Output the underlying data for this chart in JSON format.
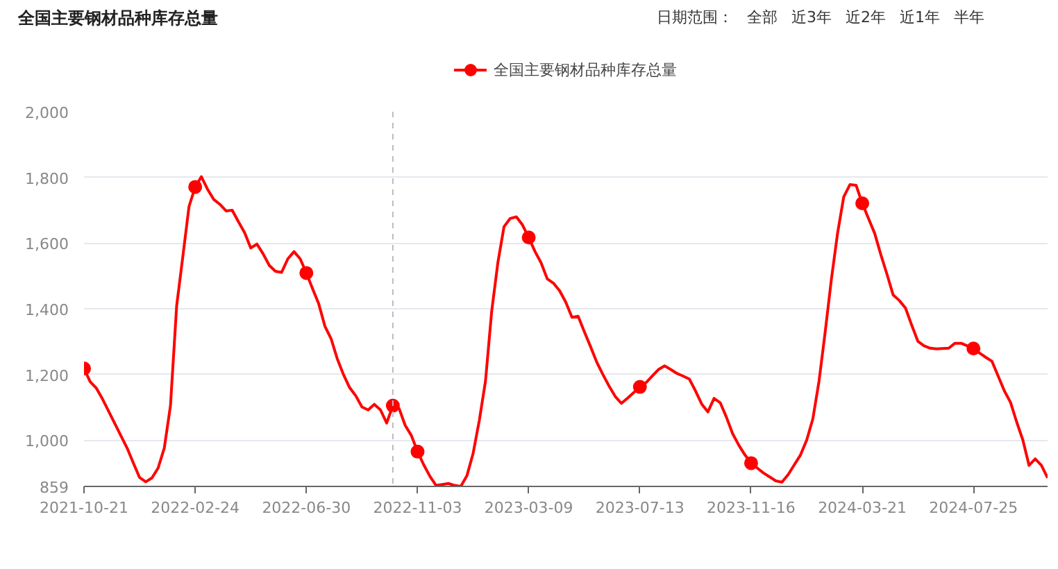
{
  "chart_data": {
    "type": "line",
    "title": "全国主要钢材品种库存总量",
    "annotations": [
      "日期范围：",
      "全部",
      "近3年",
      "近2年",
      "近1年",
      "半年"
    ],
    "x": [
      "2021-10-21",
      "2021-10-28",
      "2021-11-04",
      "2021-11-11",
      "2021-11-25",
      "2021-12-09",
      "2021-12-16",
      "2021-12-23",
      "2021-12-30",
      "2022-01-06",
      "2022-01-13",
      "2022-01-20",
      "2022-01-27",
      "2022-02-03",
      "2022-02-10",
      "2022-02-17",
      "2022-02-24",
      "2022-03-03",
      "2022-03-10",
      "2022-03-17",
      "2022-03-24",
      "2022-03-31",
      "2022-04-07",
      "2022-04-14",
      "2022-04-21",
      "2022-04-28",
      "2022-05-05",
      "2022-05-12",
      "2022-05-19",
      "2022-05-26",
      "2022-06-02",
      "2022-06-09",
      "2022-06-16",
      "2022-06-23",
      "2022-06-30",
      "2022-07-07",
      "2022-07-14",
      "2022-07-21",
      "2022-07-28",
      "2022-08-04",
      "2022-08-11",
      "2022-08-18",
      "2022-08-25",
      "2022-09-01",
      "2022-09-08",
      "2022-09-15",
      "2022-09-22",
      "2022-09-29",
      "2022-10-06",
      "2022-10-13",
      "2022-10-20",
      "2022-10-27",
      "2022-11-03",
      "2022-11-10",
      "2022-11-17",
      "2022-11-24",
      "2022-12-01",
      "2022-12-08",
      "2022-12-15",
      "2022-12-22",
      "2022-12-29",
      "2023-01-05",
      "2023-01-12",
      "2023-01-19",
      "2023-01-26",
      "2023-02-02",
      "2023-02-09",
      "2023-02-16",
      "2023-02-23",
      "2023-03-02",
      "2023-03-09",
      "2023-03-16",
      "2023-03-23",
      "2023-03-30",
      "2023-04-06",
      "2023-04-13",
      "2023-04-20",
      "2023-04-27",
      "2023-05-04",
      "2023-05-11",
      "2023-05-18",
      "2023-05-25",
      "2023-06-01",
      "2023-06-08",
      "2023-06-15",
      "2023-06-22",
      "2023-06-29",
      "2023-07-06",
      "2023-07-13",
      "2023-07-20",
      "2023-07-27",
      "2023-08-03",
      "2023-08-10",
      "2023-08-17",
      "2023-08-24",
      "2023-08-31",
      "2023-09-07",
      "2023-09-14",
      "2023-09-21",
      "2023-09-28",
      "2023-10-05",
      "2023-10-12",
      "2023-10-19",
      "2023-10-26",
      "2023-11-02",
      "2023-11-09",
      "2023-11-16",
      "2023-11-23",
      "2023-11-30",
      "2023-12-07",
      "2023-12-14",
      "2023-12-21",
      "2023-12-28",
      "2024-01-04",
      "2024-01-11",
      "2024-01-18",
      "2024-01-25",
      "2024-02-01",
      "2024-02-08",
      "2024-02-15",
      "2024-02-22",
      "2024-02-29",
      "2024-03-07",
      "2024-03-14",
      "2024-03-21",
      "2024-03-28",
      "2024-04-04",
      "2024-04-11",
      "2024-04-18",
      "2024-04-25",
      "2024-05-02",
      "2024-05-09",
      "2024-05-16",
      "2024-05-23",
      "2024-05-30",
      "2024-06-06",
      "2024-06-13",
      "2024-06-20",
      "2024-06-27",
      "2024-07-04",
      "2024-07-11",
      "2024-07-18",
      "2024-07-25",
      "2024-08-01",
      "2024-08-08",
      "2024-08-15",
      "2024-08-22",
      "2024-08-29",
      "2024-09-05",
      "2024-09-12",
      "2024-09-19",
      "2024-09-26",
      "2024-10-03",
      "2024-10-10",
      "2024-10-17"
    ],
    "series": [
      {
        "name": "全国主要钢材品种库存总量",
        "color": "#ff0000",
        "line_style": "solid",
        "values": [
          1218,
          1178,
          1158,
          1125,
          1050,
          975,
          930,
          886,
          873,
          885,
          915,
          976,
          1105,
          1409,
          1559,
          1711,
          1771,
          1802,
          1764,
          1733,
          1718,
          1698,
          1700,
          1665,
          1632,
          1585,
          1597,
          1567,
          1532,
          1514,
          1511,
          1552,
          1574,
          1552,
          1509,
          1461,
          1415,
          1347,
          1309,
          1248,
          1200,
          1160,
          1135,
          1101,
          1092,
          1109,
          1092,
          1052,
          1105,
          1097,
          1045,
          1014,
          965,
          925,
          890,
          862,
          865,
          868,
          862,
          859,
          892,
          960,
          1060,
          1180,
          1392,
          1540,
          1650,
          1675,
          1680,
          1655,
          1617,
          1575,
          1540,
          1491,
          1478,
          1455,
          1420,
          1374,
          1377,
          1330,
          1285,
          1238,
          1200,
          1165,
          1133,
          1112,
          1128,
          1145,
          1162,
          1175,
          1195,
          1215,
          1226,
          1215,
          1203,
          1195,
          1186,
          1150,
          1110,
          1086,
          1127,
          1114,
          1070,
          1020,
          985,
          955,
          930,
          915,
          900,
          888,
          876,
          872,
          895,
          925,
          955,
          1000,
          1065,
          1180,
          1330,
          1490,
          1630,
          1741,
          1778,
          1776,
          1721,
          1675,
          1630,
          1565,
          1505,
          1442,
          1425,
          1402,
          1350,
          1301,
          1287,
          1280,
          1278,
          1279,
          1280,
          1295,
          1295,
          1287,
          1279,
          1265,
          1252,
          1240,
          1195,
          1150,
          1115,
          1055,
          1000,
          923,
          943,
          923,
          885
        ]
      },
      {
        "type": "scatter",
        "color": "#ff0000",
        "marker": "circle",
        "x": [
          "2021-10-21",
          "2022-02-24",
          "2022-06-30",
          "2022-10-06",
          "2022-11-03",
          "2023-03-09",
          "2023-07-13",
          "2023-11-16",
          "2024-03-21",
          "2024-07-25"
        ],
        "values": [
          1218,
          1771,
          1509,
          1105,
          965,
          1617,
          1162,
          930,
          1721,
          1279
        ]
      }
    ],
    "xlim": [
      "2021-10-21",
      "2024-10-17"
    ],
    "xticks": [
      "2021-10-21",
      "2022-02-24",
      "2022-06-30",
      "2022-11-03",
      "2023-03-09",
      "2023-07-13",
      "2023-11-16",
      "2024-03-21",
      "2024-07-25"
    ],
    "ylim": [
      859,
      2000
    ],
    "yticks": [
      859,
      {
        "value": 1000,
        "label": "1,000"
      },
      {
        "value": 1200,
        "label": "1,200"
      },
      {
        "value": 1400,
        "label": "1,400"
      },
      {
        "value": 1600,
        "label": "1,600"
      },
      {
        "value": 1800,
        "label": "1,800"
      },
      {
        "value": 2000,
        "label": "2,000"
      }
    ],
    "ref_lines": [
      {
        "axis": "x",
        "value": "2022-10-06",
        "label": null,
        "color": "#bbbbbb",
        "line_style": "dashed"
      }
    ],
    "grid": "y",
    "legend": "top"
  }
}
